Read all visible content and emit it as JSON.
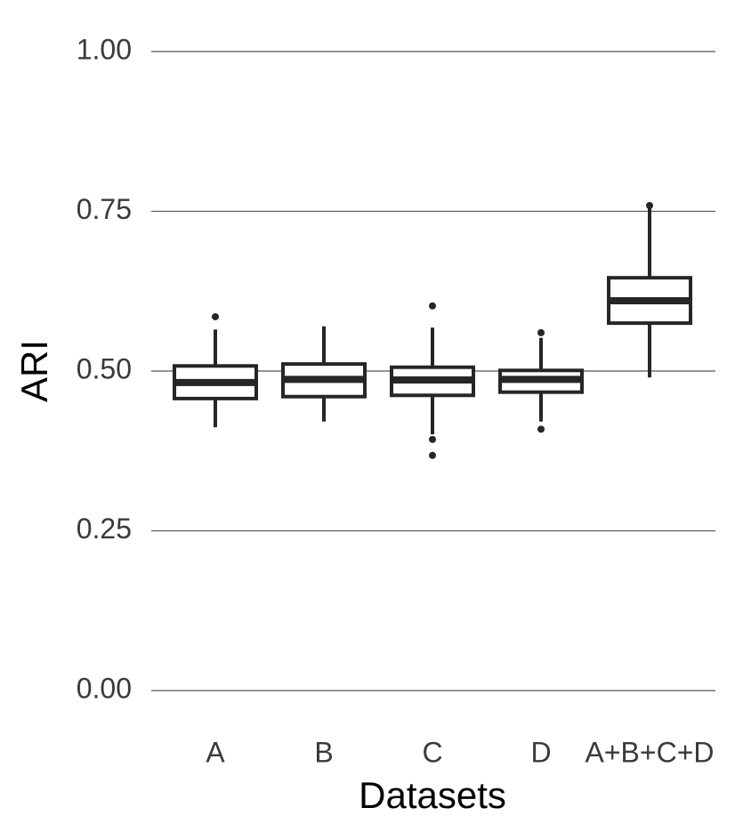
{
  "chart_data": {
    "type": "box",
    "x_label": "Datasets",
    "y_label": "ARI",
    "categories": [
      "A",
      "B",
      "C",
      "D",
      "A+B+C+D"
    ],
    "color": "#262626",
    "boxes": [
      {
        "min": 0.412,
        "q1": 0.457,
        "median": 0.482,
        "q3": 0.508,
        "max": 0.565,
        "outliers": [
          0.585
        ]
      },
      {
        "min": 0.421,
        "q1": 0.46,
        "median": 0.487,
        "q3": 0.511,
        "max": 0.57,
        "outliers": []
      },
      {
        "min": 0.401,
        "q1": 0.462,
        "median": 0.486,
        "q3": 0.506,
        "max": 0.568,
        "outliers": [
          0.393,
          0.368,
          0.602
        ]
      },
      {
        "min": 0.421,
        "q1": 0.467,
        "median": 0.487,
        "q3": 0.501,
        "max": 0.552,
        "outliers": [
          0.409,
          0.56
        ]
      },
      {
        "min": 0.49,
        "q1": 0.575,
        "median": 0.61,
        "q3": 0.646,
        "max": 0.755,
        "outliers": [
          0.759
        ]
      }
    ],
    "ylim": [
      -0.05,
      1.05
    ],
    "yticks": [
      {
        "value": 0,
        "label": "0.00"
      },
      {
        "value": 0.25,
        "label": "0.25"
      },
      {
        "value": 0.5,
        "label": "0.50"
      },
      {
        "value": 0.75,
        "label": "0.75"
      },
      {
        "value": 1,
        "label": "1.00"
      }
    ],
    "grid": true
  }
}
